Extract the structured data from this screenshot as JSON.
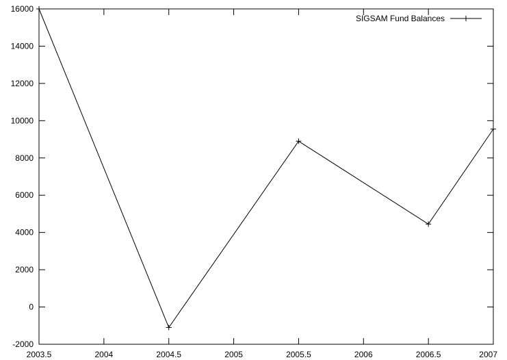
{
  "chart_data": {
    "type": "line",
    "title": "",
    "xlabel": "",
    "ylabel": "",
    "xlim": [
      2003.5,
      2007
    ],
    "ylim": [
      -2000,
      16000
    ],
    "grid": false,
    "legend_position": "top-right",
    "x_ticks": [
      "2003.5",
      "2004",
      "2004.5",
      "2005",
      "2005.5",
      "2006",
      "2006.5",
      "2007"
    ],
    "y_ticks": [
      "-2000",
      "0",
      "2000",
      "4000",
      "6000",
      "8000",
      "10000",
      "12000",
      "14000",
      "16000"
    ],
    "series": [
      {
        "name": "SIGSAM Fund Balances",
        "color": "#000000",
        "marker": "plus",
        "x": [
          2003.5,
          2004.5,
          2005.5,
          2006.5,
          2007
        ],
        "y": [
          16000,
          -1100,
          8900,
          4450,
          9550
        ]
      }
    ]
  }
}
